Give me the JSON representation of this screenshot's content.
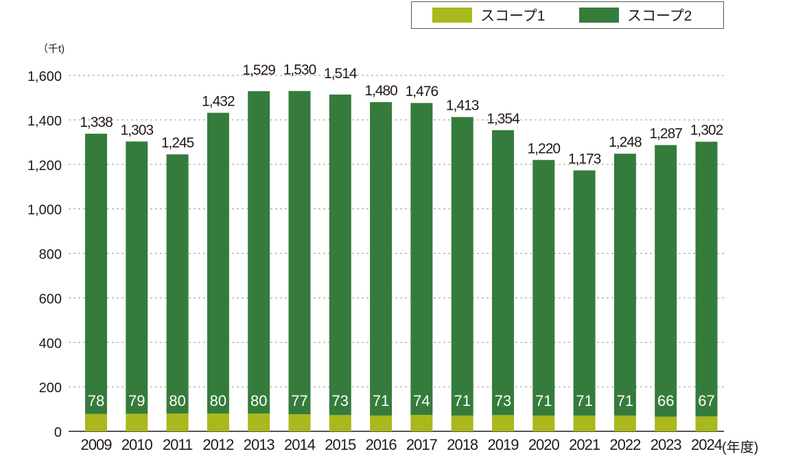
{
  "chart_data": {
    "type": "bar",
    "stacked": true,
    "unit_label": "（千t)",
    "x_suffix": "(年度)",
    "categories": [
      "2009",
      "2010",
      "2011",
      "2012",
      "2013",
      "2014",
      "2015",
      "2016",
      "2017",
      "2018",
      "2019",
      "2020",
      "2021",
      "2022",
      "2023",
      "2024"
    ],
    "series": [
      {
        "name": "スコープ1",
        "color": "#a9b81c",
        "values": [
          78,
          79,
          80,
          80,
          80,
          77,
          73,
          71,
          74,
          71,
          73,
          71,
          71,
          71,
          66,
          67
        ]
      },
      {
        "name": "スコープ2",
        "color": "#357c3c",
        "values": [
          1260,
          1224,
          1165,
          1352,
          1449,
          1453,
          1441,
          1409,
          1402,
          1342,
          1281,
          1149,
          1102,
          1177,
          1221,
          1235
        ]
      }
    ],
    "totals": [
      1338,
      1303,
      1245,
      1432,
      1529,
      1530,
      1514,
      1480,
      1476,
      1413,
      1354,
      1220,
      1173,
      1248,
      1287,
      1302
    ],
    "total_labels": [
      "1,338",
      "1,303",
      "1,245",
      "1,432",
      "1,529",
      "1,530",
      "1,514",
      "1,480",
      "1,476",
      "1,413",
      "1,354",
      "1,220",
      "1,173",
      "1,248",
      "1,287",
      "1,302"
    ],
    "y_ticks": [
      0,
      200,
      400,
      600,
      800,
      1000,
      1200,
      1400,
      1600
    ],
    "y_tick_labels": [
      "0",
      "200",
      "400",
      "600",
      "800",
      "1,000",
      "1,200",
      "1,400",
      "1,600"
    ],
    "ylim": [
      0,
      1600
    ],
    "grid": "dotted horizontal",
    "legend_position": "top-right"
  }
}
